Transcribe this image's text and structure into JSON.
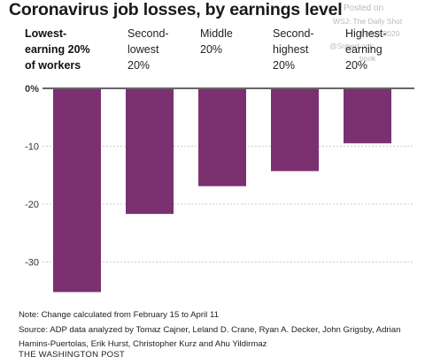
{
  "title": "Coronavirus job losses, by earnings level",
  "watermark": {
    "line1": "Posted on",
    "line2": "WSJ: The Daily Shot",
    "line3": "1-May-2020",
    "line4": "@SoberLook",
    "line5": "book"
  },
  "categories": [
    {
      "label": "Lowest-earning 20% of workers",
      "lines": [
        "Lowest-",
        "earning 20%",
        "of workers"
      ],
      "bold": true
    },
    {
      "label": "Second-lowest 20%",
      "lines": [
        "Second-",
        "lowest",
        "20%"
      ],
      "bold": false
    },
    {
      "label": "Middle 20%",
      "lines": [
        "Middle",
        "20%"
      ],
      "bold": false
    },
    {
      "label": "Second-highest 20%",
      "lines": [
        "Second-",
        "highest",
        "20%"
      ],
      "bold": false
    },
    {
      "label": "Highest-earning 20%",
      "lines": [
        "Highest-",
        "earning",
        "20%"
      ],
      "bold": false
    }
  ],
  "chart_data": {
    "type": "bar",
    "title": "Coronavirus job losses, by earnings level",
    "categories": [
      "Lowest-earning 20% of workers",
      "Second-lowest 20%",
      "Middle 20%",
      "Second-highest 20%",
      "Highest-earning 20%"
    ],
    "values": [
      -35.2,
      -21.7,
      -16.9,
      -14.3,
      -9.5
    ],
    "ylim": [
      -37,
      0
    ],
    "yticks": [
      0,
      -10,
      -20,
      -30
    ],
    "ytick_labels": [
      "0%",
      "-10",
      "-20",
      "-30"
    ],
    "grid": true,
    "bar_color": "#7b3070"
  },
  "note": "Note: Change calculated from February 15 to April 11",
  "source": "Source: ADP data analyzed by Tomaz Cajner, Leland D. Crane, Ryan A. Decker, John Grigsby, Adrian Hamins-Puertolas, Erik Hurst, Christopher Kurz and Ahu Yildirmaz",
  "publisher": "THE WASHINGTON POST"
}
